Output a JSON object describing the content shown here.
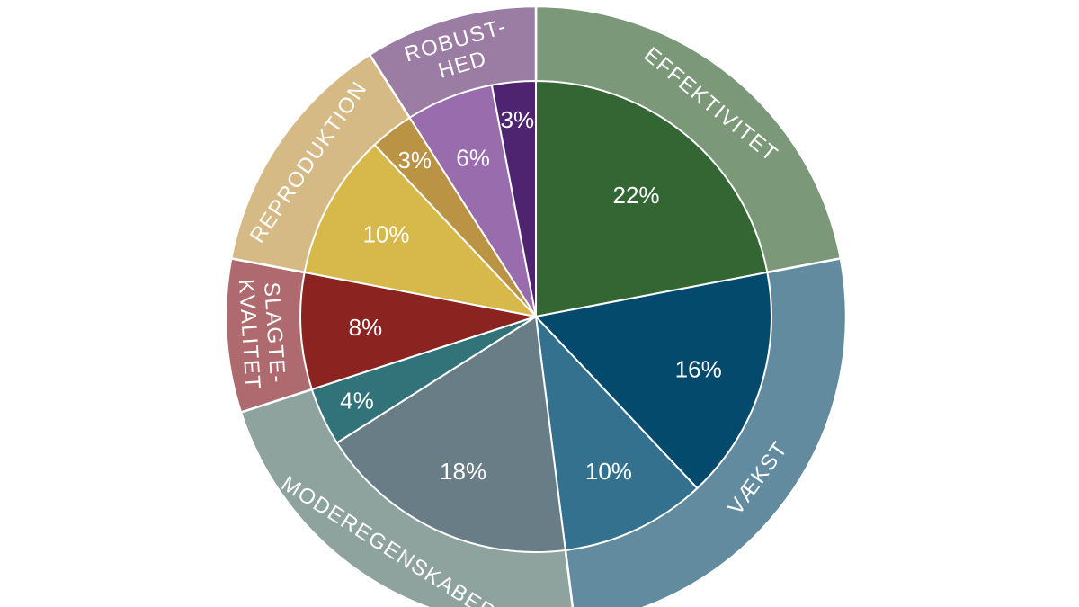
{
  "chart_data": {
    "type": "pie",
    "title": "",
    "inner_slices": [
      {
        "label": "22%",
        "value": 22,
        "color": "#336633",
        "group": "effektivitet"
      },
      {
        "label": "16%",
        "value": 16,
        "color": "#034a6c",
        "group": "vaekst"
      },
      {
        "label": "10%",
        "value": 10,
        "color": "#33718f",
        "group": "vaekst"
      },
      {
        "label": "18%",
        "value": 18,
        "color": "#687d86",
        "group": "moderegenskaber"
      },
      {
        "label": "4%",
        "value": 4,
        "color": "#32737a",
        "group": "moderegenskaber"
      },
      {
        "label": "8%",
        "value": 8,
        "color": "#8b2321",
        "group": "slagtekvalitet"
      },
      {
        "label": "10%",
        "value": 10,
        "color": "#d7b84b",
        "group": "reproduktion"
      },
      {
        "label": "3%",
        "value": 3,
        "color": "#bb9345",
        "group": "reproduktion"
      },
      {
        "label": "6%",
        "value": 6,
        "color": "#986cad",
        "group": "robusthed"
      },
      {
        "label": "3%",
        "value": 3,
        "color": "#4e2470",
        "group": "robusthed"
      }
    ],
    "outer_groups": [
      {
        "id": "effektivitet",
        "lines": [
          "EFFEKTIVITET"
        ],
        "color": "#7b9878"
      },
      {
        "id": "vaekst",
        "lines": [
          "VÆKST"
        ],
        "color": "#638ba0"
      },
      {
        "id": "moderegenskaber",
        "lines": [
          "MODEREGENSKABER"
        ],
        "color": "#8ea29e"
      },
      {
        "id": "slagtekvalitet",
        "lines": [
          "SLAGTE-",
          "KVALITET"
        ],
        "color": "#ae6a6e"
      },
      {
        "id": "reproduktion",
        "lines": [
          "REPRODUKTION"
        ],
        "color": "#d6ba86"
      },
      {
        "id": "robusthed",
        "lines": [
          "ROBUST-",
          "HED"
        ],
        "color": "#9b7ca3"
      }
    ],
    "legend": "none",
    "grid": false
  }
}
